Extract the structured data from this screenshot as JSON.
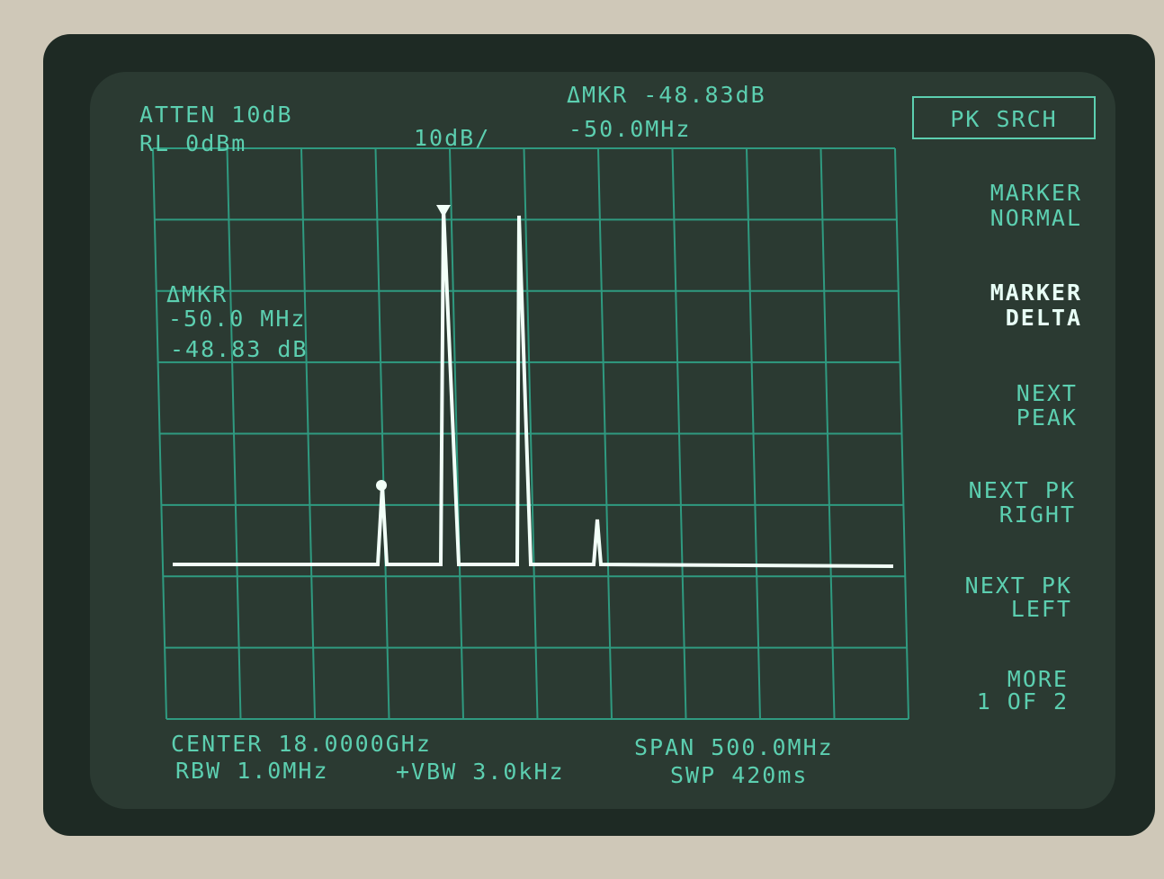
{
  "header": {
    "atten": "ATTEN 10dB",
    "ref_level": "RL 0dBm",
    "scale": "10dB/",
    "marker_delta": "ΔMKR -48.83dB",
    "marker_freq": "-50.0MHz"
  },
  "marker_readout": [
    "ΔMKR",
    "-50.0 MHz",
    "-48.83 dB"
  ],
  "softkeys": [
    {
      "lines": [
        "PK SRCH"
      ]
    },
    {
      "lines": [
        "MARKER",
        "NORMAL"
      ]
    },
    {
      "lines": [
        "MARKER",
        "DELTA"
      ]
    },
    {
      "lines": [
        "NEXT",
        "PEAK"
      ]
    },
    {
      "lines": [
        "NEXT PK",
        "RIGHT"
      ]
    },
    {
      "lines": [
        "NEXT PK",
        "LEFT"
      ]
    },
    {
      "lines": [
        "MORE",
        "1 OF 2"
      ]
    }
  ],
  "footer": {
    "center": "CENTER 18.0000GHz",
    "span": "SPAN 500.0MHz",
    "rbw": "RBW 1.0MHz",
    "vbw": "+VBW 3.0kHz",
    "sweep": "SWP 420ms"
  }
}
